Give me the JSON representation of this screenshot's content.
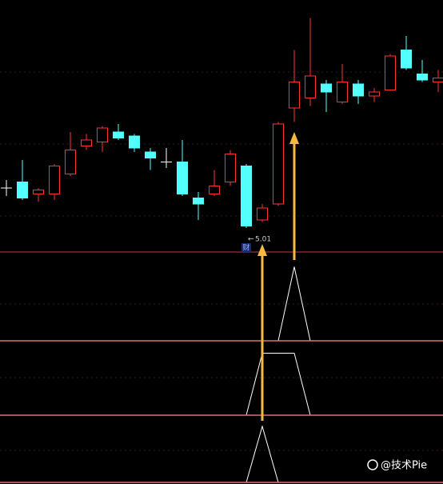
{
  "chart_data": [
    {
      "type": "candlestick",
      "up_color": "#ff3232",
      "down_color": "#54ffff",
      "doji_color": "#ffffff",
      "ylim": [
        4.89,
        6.15
      ],
      "open": [
        5.21,
        5.24,
        5.18,
        5.18,
        5.28,
        5.42,
        5.44,
        5.49,
        5.47,
        5.39,
        5.34,
        5.34,
        5.16,
        5.18,
        5.24,
        5.32,
        5.05,
        5.13,
        5.61,
        5.66,
        5.73,
        5.64,
        5.73,
        5.67,
        5.7,
        5.9,
        5.78,
        5.74
      ],
      "high": [
        5.25,
        5.35,
        5.21,
        5.33,
        5.49,
        5.48,
        5.52,
        5.53,
        5.48,
        5.41,
        5.41,
        5.45,
        5.19,
        5.3,
        5.4,
        5.33,
        5.13,
        5.54,
        5.9,
        6.06,
        5.75,
        5.83,
        5.75,
        5.71,
        5.88,
        5.97,
        5.85,
        5.8
      ],
      "low": [
        5.17,
        5.15,
        5.14,
        5.15,
        5.27,
        5.4,
        5.39,
        5.45,
        5.39,
        5.3,
        5.31,
        5.17,
        5.05,
        5.17,
        5.22,
        5.01,
        5.04,
        5.12,
        5.54,
        5.62,
        5.59,
        5.63,
        5.63,
        5.64,
        5.7,
        5.8,
        5.74,
        5.69
      ],
      "close": [
        5.21,
        5.16,
        5.2,
        5.32,
        5.4,
        5.45,
        5.51,
        5.46,
        5.41,
        5.36,
        5.34,
        5.18,
        5.13,
        5.22,
        5.38,
        5.02,
        5.11,
        5.53,
        5.74,
        5.77,
        5.69,
        5.74,
        5.67,
        5.69,
        5.87,
        5.81,
        5.75,
        5.76
      ],
      "annotations": [
        "财"
      ]
    },
    {
      "type": "line",
      "color": "#ffffff",
      "ylim": [
        0,
        1.2
      ],
      "values": [
        0,
        0,
        0,
        0,
        0,
        0,
        0,
        0,
        0,
        0,
        0,
        0,
        0,
        0,
        0,
        0,
        0,
        0,
        1,
        0,
        0,
        0,
        0,
        0,
        0,
        0,
        0,
        0
      ]
    },
    {
      "type": "line",
      "color": "#ffffff",
      "ylim": [
        0,
        1.2
      ],
      "values": [
        0,
        0,
        0,
        0,
        0,
        0,
        0,
        0,
        0,
        0,
        0,
        0,
        0,
        0,
        0,
        0,
        1,
        1,
        1,
        0,
        0,
        0,
        0,
        0,
        0,
        0,
        0,
        0
      ]
    },
    {
      "type": "line",
      "color": "#ffffff",
      "ylim": [
        0,
        1.2
      ],
      "values": [
        0,
        0,
        0,
        0,
        0,
        0,
        0,
        0,
        0,
        0,
        0,
        0,
        0,
        0,
        0,
        0,
        1,
        0,
        0,
        0,
        0,
        0,
        0,
        0,
        0,
        0,
        0,
        0
      ]
    }
  ],
  "watermark": "@技术Pie"
}
